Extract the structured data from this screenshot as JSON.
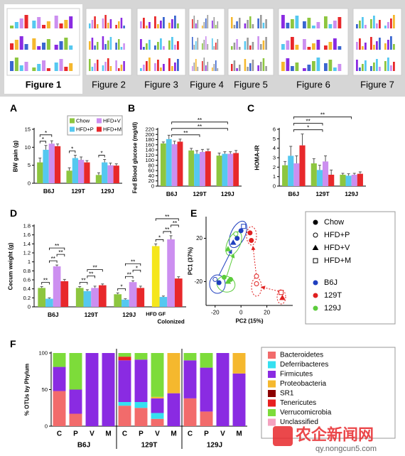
{
  "thumbnails": [
    "Figure 1",
    "Figure 2",
    "Figure 3",
    "Figure 4",
    "Figure 5",
    "Figure 6",
    "Figure 7"
  ],
  "selected_thumbnail": "Figure 1",
  "watermark": {
    "name": "农企新闻网",
    "url": "qy.nongcun5.com"
  },
  "chart_data": [
    {
      "type": "bar",
      "panel": "A",
      "ylabel": "BW gain (g)",
      "categories": [
        "B6J",
        "129T",
        "129J"
      ],
      "ylim": [
        0,
        15
      ],
      "yticks": [
        0,
        5,
        10,
        15
      ],
      "legend": true,
      "series": [
        {
          "name": "Chow",
          "color": "#8dc63f",
          "values": [
            5.8,
            3.5,
            2.3
          ],
          "errors": [
            1.2,
            0.8,
            0.6
          ]
        },
        {
          "name": "HFD+P",
          "color": "#55c8f0",
          "values": [
            9.3,
            7.0,
            5.8
          ],
          "errors": [
            1.2,
            0.8,
            0.8
          ]
        },
        {
          "name": "HFD+V",
          "color": "#cc8ff0",
          "values": [
            11.0,
            6.5,
            5.0
          ],
          "errors": [
            0.8,
            0.8,
            0.6
          ]
        },
        {
          "name": "HFD+M",
          "color": "#e8282b",
          "values": [
            10.3,
            5.8,
            4.9
          ],
          "errors": [
            0.6,
            0.5,
            0.5
          ]
        }
      ],
      "annotations": [
        {
          "label": "*",
          "category": "B6J",
          "between": [
            "Chow",
            "HFD+P"
          ]
        },
        {
          "label": "*",
          "category": "B6J",
          "between": [
            "Chow",
            "HFD+V"
          ]
        },
        {
          "label": "*",
          "category": "129T",
          "between": [
            "Chow",
            "HFD+P"
          ]
        },
        {
          "label": "*",
          "category": "129J",
          "between": [
            "Chow",
            "HFD+P"
          ]
        }
      ]
    },
    {
      "type": "bar",
      "panel": "B",
      "ylabel": "Fed Blood glucose (mg/dl)",
      "categories": [
        "B6J",
        "129T",
        "129J"
      ],
      "ylim": [
        0,
        220
      ],
      "yticks": [
        0,
        20,
        40,
        60,
        80,
        100,
        120,
        140,
        160,
        180,
        200,
        220
      ],
      "series": [
        {
          "name": "Chow",
          "color": "#8dc63f",
          "values": [
            165,
            138,
            118
          ],
          "errors": [
            6,
            8,
            10
          ]
        },
        {
          "name": "HFD+P",
          "color": "#55c8f0",
          "values": [
            182,
            125,
            125
          ],
          "errors": [
            15,
            12,
            8
          ]
        },
        {
          "name": "HFD+V",
          "color": "#cc8ff0",
          "values": [
            162,
            132,
            125
          ],
          "errors": [
            12,
            10,
            8
          ]
        },
        {
          "name": "HFD+M",
          "color": "#e8282b",
          "values": [
            172,
            135,
            128
          ],
          "errors": [
            10,
            8,
            10
          ]
        }
      ],
      "annotations": [
        {
          "label": "**",
          "between": [
            "B6J",
            "129T"
          ]
        },
        {
          "label": "**",
          "between": [
            "B6J",
            "129J"
          ]
        },
        {
          "label": "**",
          "between": [
            "B6J",
            "129J"
          ]
        }
      ]
    },
    {
      "type": "bar",
      "panel": "C",
      "ylabel": "HOMA-IR",
      "categories": [
        "B6J",
        "129T",
        "129J"
      ],
      "ylim": [
        0,
        6
      ],
      "yticks": [
        0,
        1,
        2,
        3,
        4,
        5,
        6
      ],
      "series": [
        {
          "name": "Chow",
          "color": "#8dc63f",
          "values": [
            2.2,
            2.4,
            1.2
          ],
          "errors": [
            0.4,
            0.5,
            0.15
          ]
        },
        {
          "name": "HFD+P",
          "color": "#55c8f0",
          "values": [
            3.2,
            1.7,
            1.1
          ],
          "errors": [
            1.0,
            0.5,
            0.2
          ]
        },
        {
          "name": "HFD+V",
          "color": "#cc8ff0",
          "values": [
            2.4,
            2.6,
            1.2
          ],
          "errors": [
            0.8,
            0.6,
            0.15
          ]
        },
        {
          "name": "HFD+M",
          "color": "#e8282b",
          "values": [
            4.3,
            1.2,
            1.3
          ],
          "errors": [
            1.2,
            0.5,
            0.2
          ]
        }
      ],
      "annotations": [
        {
          "label": "*",
          "between": [
            "B6J",
            "129T"
          ]
        },
        {
          "label": "**",
          "between": [
            "B6J",
            "129T"
          ]
        },
        {
          "label": "**",
          "between": [
            "B6J",
            "129J"
          ]
        }
      ]
    },
    {
      "type": "bar",
      "panel": "D",
      "ylabel": "Cecum weight (g)",
      "categories": [
        "B6J",
        "129T",
        "129J",
        "Colonized"
      ],
      "ylim": [
        0,
        1.8
      ],
      "yticks": [
        0,
        0.2,
        0.4,
        0.6,
        0.8,
        1,
        1.2,
        1.4,
        1.6,
        1.8
      ],
      "series": [
        {
          "name": "Chow",
          "color": "#8dc63f",
          "values": [
            0.42,
            0.42,
            0.28,
            null
          ],
          "errors": [
            0.03,
            0.03,
            0.03,
            null
          ]
        },
        {
          "name": "HFD+P",
          "color": "#55c8f0",
          "values": [
            0.18,
            0.35,
            0.16,
            0.22
          ],
          "errors": [
            0.02,
            0.03,
            0.02,
            0.02
          ]
        },
        {
          "name": "HFD+V",
          "color": "#cc8ff0",
          "values": [
            0.9,
            0.42,
            0.55,
            1.5
          ],
          "errors": [
            0.03,
            0.04,
            0.03,
            0.08
          ]
        },
        {
          "name": "HFD+M",
          "color": "#e8282b",
          "values": [
            0.57,
            0.48,
            0.42,
            0.63
          ],
          "errors": [
            0.04,
            0.03,
            0.04,
            0.04
          ]
        },
        {
          "name": "HFD GF",
          "color": "#f5e61b",
          "values": [
            null,
            null,
            null,
            1.35
          ],
          "errors": [
            null,
            null,
            null,
            0.05
          ]
        }
      ],
      "annotations": [
        {
          "label": "**",
          "category": "B6J",
          "between": [
            "Chow",
            "HFD+P"
          ]
        },
        {
          "label": "**",
          "category": "B6J",
          "between": [
            "HFD+P",
            "HFD+V"
          ]
        },
        {
          "label": "**",
          "category": "B6J",
          "between": [
            "HFD+V",
            "HFD+M"
          ]
        },
        {
          "label": "**",
          "category": "B6J",
          "between": [
            "HFD+P",
            "HFD+M"
          ]
        },
        {
          "label": "**",
          "category": "129T",
          "between": [
            "Chow",
            "HFD+P"
          ]
        },
        {
          "label": "**",
          "category": "129T",
          "between": [
            "HFD+P",
            "HFD+V"
          ]
        },
        {
          "label": "**",
          "category": "129T",
          "between": [
            "HFD+P",
            "HFD+M"
          ]
        },
        {
          "label": "*",
          "category": "129J",
          "between": [
            "Chow",
            "HFD+P"
          ]
        },
        {
          "label": "**",
          "category": "129J",
          "between": [
            "HFD+P",
            "HFD+V"
          ]
        },
        {
          "label": "*",
          "category": "129J",
          "between": [
            "HFD+V",
            "HFD+M"
          ]
        },
        {
          "label": "**",
          "category": "129J",
          "between": [
            "HFD+P",
            "HFD+M"
          ]
        },
        {
          "label": "*",
          "category": "Colonized",
          "between": [
            "HFD GF",
            "HFD+P"
          ]
        },
        {
          "label": "**",
          "category": "Colonized",
          "between": [
            "HFD+P",
            "HFD+V"
          ]
        },
        {
          "label": "**",
          "category": "Colonized",
          "between": [
            "HFD+V",
            "HFD+M"
          ]
        },
        {
          "label": "**",
          "category": "Colonized",
          "between": [
            "HFD GF",
            "HFD+M"
          ]
        }
      ]
    },
    {
      "type": "scatter",
      "panel": "E",
      "xlabel": "PC2 (15%)",
      "ylabel": "PC1 (37%)",
      "xlim": [
        -27,
        40
      ],
      "ylim": [
        -42,
        40
      ],
      "xticks": [
        -20,
        0,
        20
      ],
      "yticks": [
        -20,
        20
      ],
      "markers": [
        {
          "name": "Chow",
          "shape": "filled-circle"
        },
        {
          "name": "HFD+P",
          "shape": "open-circle"
        },
        {
          "name": "HFD+V",
          "shape": "filled-triangle"
        },
        {
          "name": "HFD+M",
          "shape": "open-square"
        }
      ],
      "series": [
        {
          "name": "B6J",
          "color": "#1f3fbf",
          "x": [
            -6,
            -3,
            0,
            2,
            -20,
            -17
          ],
          "y": [
            16,
            20,
            27,
            31,
            -18,
            -21
          ],
          "groups": [
            "HFD+V",
            "Chow",
            "Chow",
            "HFD+M",
            "HFD+P",
            "Chow"
          ]
        },
        {
          "name": "129T",
          "color": "#e02020",
          "x": [
            7,
            8,
            12,
            12,
            31,
            32
          ],
          "y": [
            25,
            18,
            -15,
            -22,
            -30,
            -35
          ],
          "groups": [
            "Chow",
            "Chow",
            "HFD+P",
            "HFD+P",
            "HFD+M",
            "HFD+V"
          ]
        },
        {
          "name": "129J",
          "color": "#5ccc3c",
          "x": [
            -10,
            -13,
            -10,
            -8,
            -4
          ],
          "y": [
            10,
            -16,
            -20,
            -18,
            24
          ],
          "groups": [
            "HFD+V",
            "Chow",
            "HFD+V",
            "Chow",
            "HFD+P"
          ]
        }
      ]
    },
    {
      "type": "stacked_bar",
      "panel": "F",
      "ylabel": "% OTUs by Phylum",
      "categories": [
        "C",
        "P",
        "V",
        "M",
        "C",
        "P",
        "V",
        "M",
        "C",
        "P",
        "V",
        "M"
      ],
      "groups": [
        "B6J",
        "129T",
        "129J"
      ],
      "ylim": [
        0,
        100
      ],
      "yticks": [
        0,
        50,
        100
      ],
      "series": [
        {
          "name": "Bacteroidetes",
          "color": "#f26b6b",
          "values": [
            48,
            17,
            0,
            0,
            28,
            25,
            10,
            0,
            38,
            20,
            0,
            0
          ]
        },
        {
          "name": "Deferribacteres",
          "color": "#35e0f0",
          "values": [
            0,
            0,
            0,
            0,
            5,
            8,
            8,
            0,
            0,
            0,
            0,
            0
          ]
        },
        {
          "name": "Firmicutes",
          "color": "#8a2be2",
          "values": [
            33,
            33,
            100,
            100,
            57,
            58,
            20,
            45,
            52,
            60,
            100,
            72
          ]
        },
        {
          "name": "Proteobacteria",
          "color": "#f5b82e",
          "values": [
            0,
            0,
            0,
            0,
            0,
            0,
            2,
            55,
            0,
            0,
            0,
            28
          ]
        },
        {
          "name": "SR1",
          "color": "#8b0000",
          "values": [
            0,
            0,
            0,
            0,
            0,
            0,
            0,
            0,
            0,
            0,
            0,
            0
          ]
        },
        {
          "name": "Tenericutes",
          "color": "#e82020",
          "values": [
            0,
            0,
            0,
            0,
            5,
            0,
            0,
            0,
            0,
            0,
            0,
            0
          ]
        },
        {
          "name": "Verrucomicrobia",
          "color": "#7ddc3a",
          "values": [
            19,
            50,
            0,
            0,
            5,
            9,
            60,
            0,
            10,
            20,
            0,
            0
          ]
        },
        {
          "name": "Unclassified",
          "color": "#f4a3c0",
          "values": [
            0,
            0,
            0,
            0,
            0,
            0,
            0,
            0,
            0,
            0,
            0,
            0
          ]
        }
      ]
    }
  ]
}
